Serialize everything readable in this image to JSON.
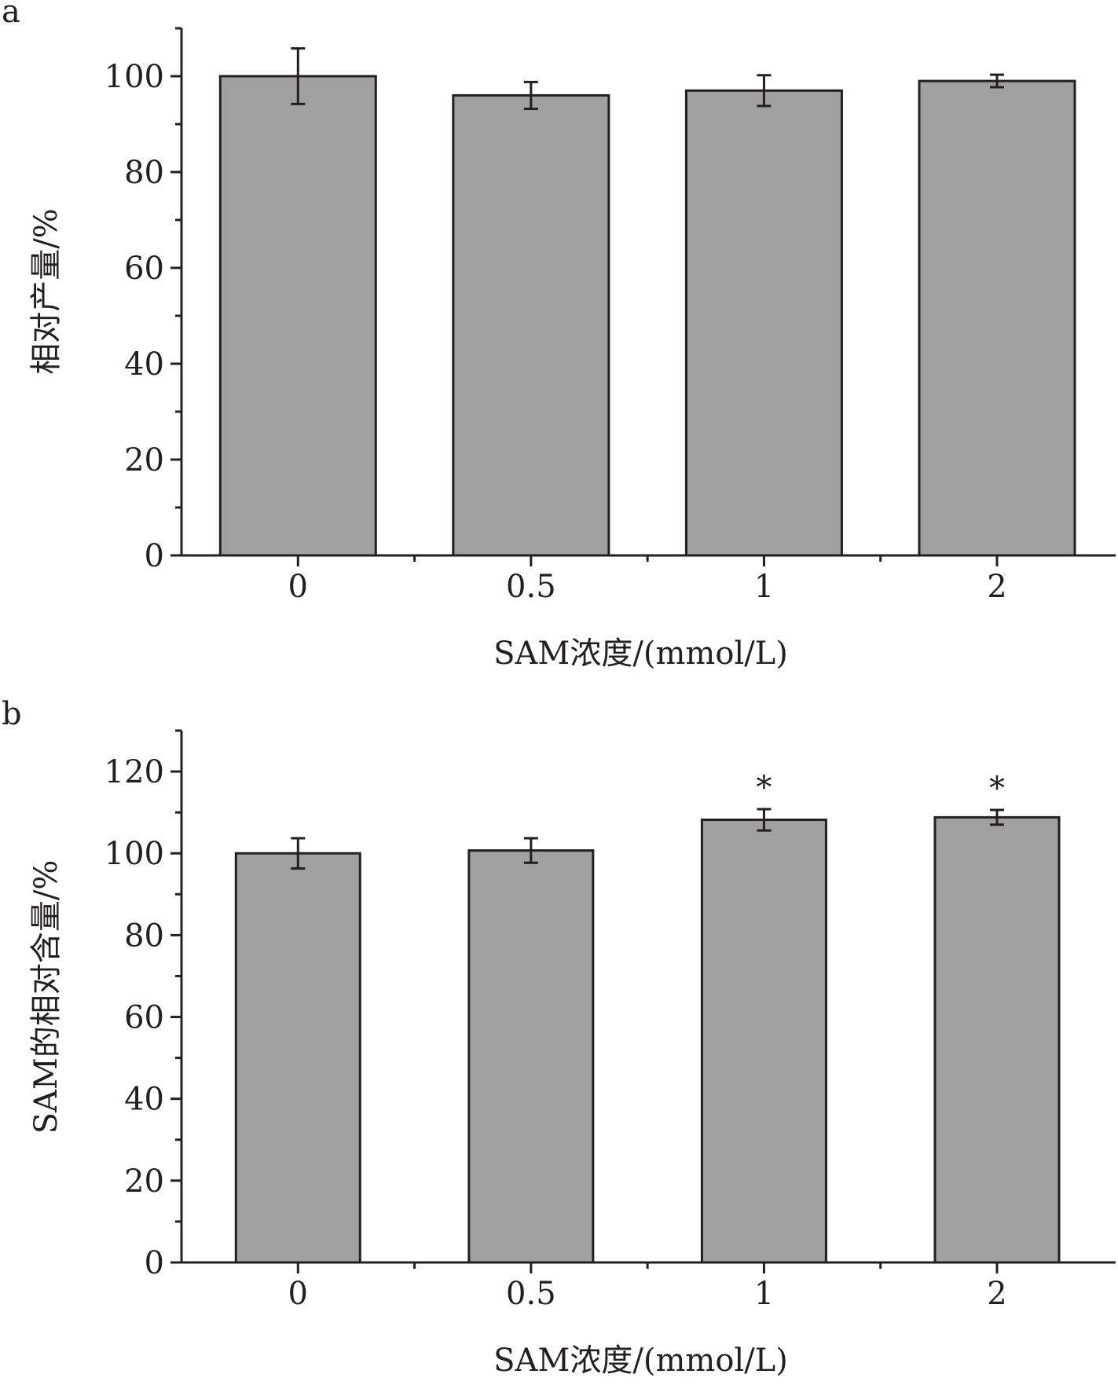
{
  "colors": {
    "bar_fill": "#a0a0a0",
    "bar_stroke": "#231f20",
    "axis": "#231f20",
    "background": "#ffffff"
  },
  "chart_data": [
    {
      "type": "bar",
      "panel_label": "a",
      "categories": [
        "0",
        "0.5",
        "1",
        "2"
      ],
      "values": [
        100,
        96,
        97,
        99
      ],
      "errors": [
        5.8,
        2.8,
        3.2,
        1.3
      ],
      "annotations": [
        "",
        "",
        "",
        ""
      ],
      "xlabel": "SAM浓度/(mmol/L)",
      "ylabel": "相对产量/%",
      "ylim": [
        0,
        110
      ],
      "yticks": [
        0,
        20,
        40,
        60,
        80,
        100
      ],
      "grid": false,
      "legend": "none"
    },
    {
      "type": "bar",
      "panel_label": "b",
      "categories": [
        "0",
        "0.5",
        "1",
        "2"
      ],
      "values": [
        100,
        100.7,
        108.2,
        108.8
      ],
      "errors": [
        3.7,
        3.0,
        2.6,
        1.8
      ],
      "annotations": [
        "",
        "",
        "*",
        "*"
      ],
      "xlabel": "SAM浓度/(mmol/L)",
      "ylabel": "SAM的相对含量/%",
      "ylim": [
        0,
        130
      ],
      "yticks": [
        0,
        20,
        40,
        60,
        80,
        100,
        120
      ],
      "grid": false,
      "legend": "none"
    }
  ]
}
